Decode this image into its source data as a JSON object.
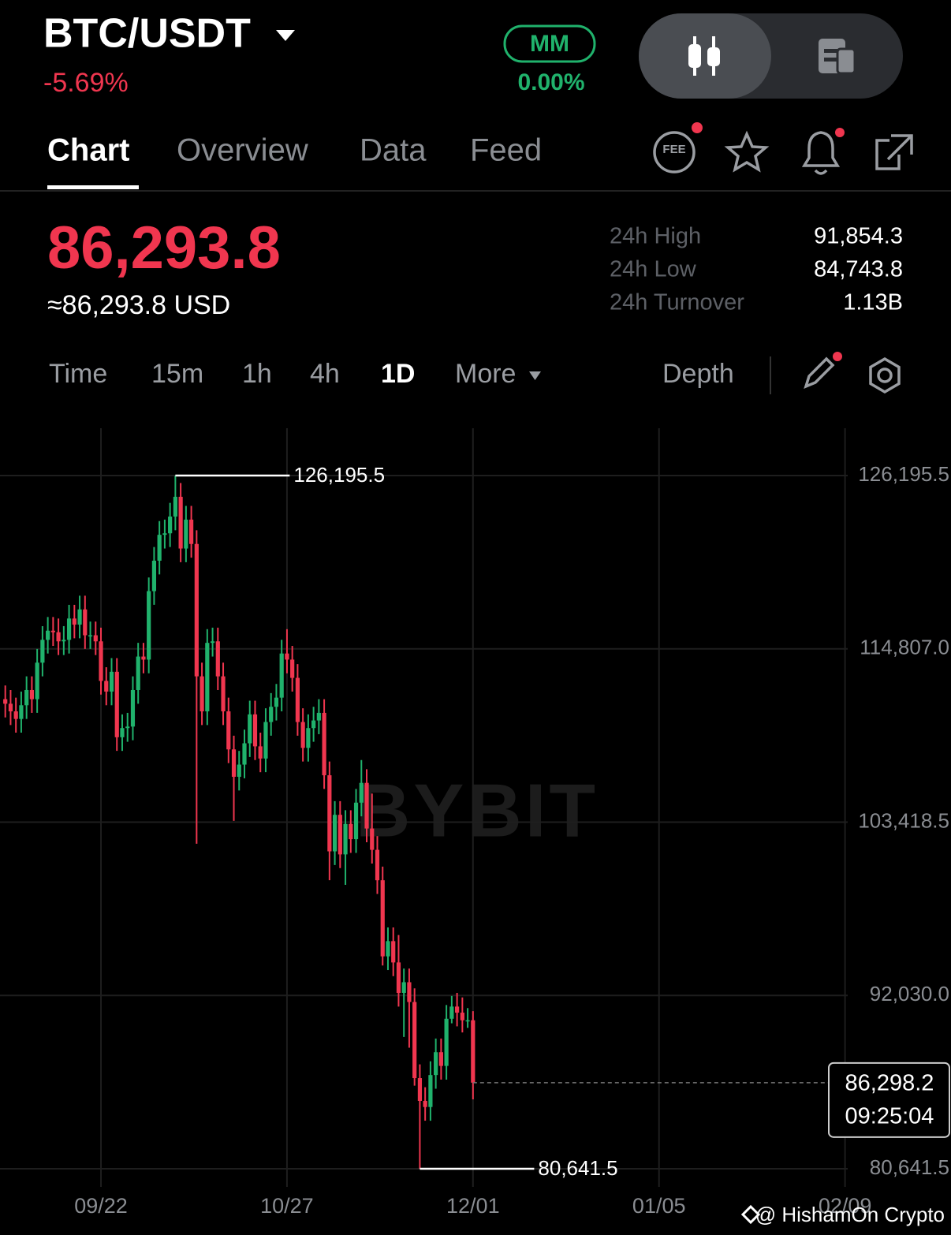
{
  "header": {
    "pair": "BTC/USDT",
    "change": "-5.69%",
    "badge": "MM",
    "badge_change": "0.00%"
  },
  "tabs": [
    "Chart",
    "Overview",
    "Data",
    "Feed"
  ],
  "ticker": {
    "price": "86,293.8",
    "usd": "≈86,293.8 USD",
    "stats": [
      {
        "label": "24h High",
        "value": "91,854.3"
      },
      {
        "label": "24h Low",
        "value": "84,743.8"
      },
      {
        "label": "24h Turnover",
        "value": "1.13B"
      }
    ]
  },
  "timeframes": [
    "Time",
    "15m",
    "1h",
    "4h",
    "1D",
    "More"
  ],
  "depth": "Depth",
  "chart_data": {
    "type": "candlestick",
    "watermark": "BYBIT",
    "x": [
      "09/04",
      "09/05",
      "09/06",
      "09/07",
      "09/08",
      "09/09",
      "09/10",
      "09/11",
      "09/12",
      "09/13",
      "09/14",
      "09/15",
      "09/16",
      "09/17",
      "09/18",
      "09/19",
      "09/20",
      "09/21",
      "09/22",
      "09/23",
      "09/24",
      "09/25",
      "09/26",
      "09/27",
      "09/28",
      "09/29",
      "09/30",
      "10/01",
      "10/02",
      "10/03",
      "10/04",
      "10/05",
      "10/06",
      "10/07",
      "10/08",
      "10/09",
      "10/10",
      "10/11",
      "10/12",
      "10/13",
      "10/14",
      "10/15",
      "10/16",
      "10/17",
      "10/18",
      "10/19",
      "10/20",
      "10/21",
      "10/22",
      "10/23",
      "10/24",
      "10/25",
      "10/26",
      "10/27",
      "10/28",
      "10/29",
      "10/30",
      "10/31",
      "11/01",
      "11/02",
      "11/03",
      "11/04",
      "11/05",
      "11/06",
      "11/07",
      "11/08",
      "11/09",
      "11/10",
      "11/11",
      "11/12",
      "11/13",
      "11/14",
      "11/15",
      "11/16",
      "11/17",
      "11/18",
      "11/19",
      "11/20",
      "11/21",
      "11/22",
      "11/23",
      "11/24",
      "11/25",
      "11/26",
      "11/27",
      "11/28",
      "11/29",
      "11/30",
      "12/01"
    ],
    "open": [
      111500,
      111200,
      110700,
      110200,
      111100,
      112100,
      111500,
      113900,
      115400,
      116000,
      115900,
      115300,
      115400,
      116800,
      116400,
      117400,
      115700,
      115700,
      115300,
      112700,
      112000,
      113300,
      109000,
      109600,
      109700,
      112100,
      114300,
      114100,
      118600,
      120600,
      122300,
      122400,
      123500,
      124800,
      121400,
      123300,
      121700,
      113000,
      110700,
      115200,
      115300,
      113000,
      110700,
      108200,
      106400,
      107200,
      108600,
      110500,
      108400,
      107600,
      110000,
      111000,
      111600,
      114500,
      114100,
      112900,
      110000,
      108300,
      109600,
      110100,
      110600,
      106500,
      101500,
      103900,
      101300,
      103300,
      102300,
      104700,
      106000,
      103000,
      101600,
      99600,
      94600,
      95600,
      94200,
      92200,
      92900,
      91600,
      86600,
      85100,
      84700,
      86800,
      88300,
      87400,
      90500,
      91300,
      90900,
      90400,
      90400
    ],
    "high": [
      112400,
      112100,
      111600,
      112000,
      113000,
      113000,
      114800,
      116300,
      116900,
      116900,
      116800,
      116300,
      117700,
      117700,
      118300,
      118300,
      116600,
      116600,
      116200,
      113600,
      114200,
      114200,
      110500,
      110600,
      113000,
      115200,
      115200,
      119500,
      121500,
      123200,
      123300,
      124400,
      126195.5,
      125700,
      124200,
      124200,
      122600,
      113900,
      116100,
      116200,
      116200,
      113900,
      111600,
      109100,
      108100,
      109500,
      111400,
      111400,
      109300,
      110900,
      111900,
      112500,
      115400,
      116100,
      115000,
      113800,
      110900,
      110500,
      111000,
      111500,
      111500,
      107400,
      104800,
      104800,
      104200,
      104200,
      105600,
      107500,
      106900,
      105300,
      102500,
      100500,
      96500,
      96500,
      96000,
      93800,
      93800,
      92500,
      87500,
      86000,
      87700,
      89200,
      89200,
      91400,
      92000,
      92200,
      91900,
      91200,
      91000
    ],
    "low": [
      110300,
      109800,
      109300,
      109300,
      110200,
      110600,
      110600,
      113000,
      114500,
      115000,
      114400,
      114400,
      114500,
      115500,
      115500,
      114800,
      114800,
      114400,
      111800,
      111100,
      111100,
      108100,
      108100,
      108700,
      108800,
      111200,
      113200,
      113200,
      117700,
      119700,
      121400,
      121500,
      122600,
      120500,
      120500,
      120800,
      102000,
      109800,
      109800,
      114300,
      112100,
      109800,
      107300,
      103500,
      105500,
      106300,
      107700,
      107500,
      106700,
      106700,
      109100,
      110100,
      110700,
      113200,
      112000,
      109100,
      107400,
      107400,
      108700,
      109200,
      105600,
      99600,
      100600,
      100400,
      99300,
      101400,
      101400,
      103800,
      102100,
      100700,
      98700,
      94000,
      93700,
      93300,
      91300,
      89300,
      88600,
      86100,
      80641.5,
      83800,
      83800,
      85900,
      86500,
      86500,
      90200,
      90000,
      89600,
      89900,
      85200
    ],
    "close": [
      111200,
      110700,
      110200,
      111100,
      112100,
      111500,
      113900,
      115400,
      116000,
      115900,
      115300,
      115400,
      116800,
      116400,
      117400,
      115700,
      115700,
      115300,
      112700,
      112000,
      113300,
      109000,
      109600,
      109700,
      112100,
      114300,
      114100,
      118600,
      120600,
      122300,
      122400,
      123500,
      124800,
      121400,
      123300,
      121700,
      113000,
      110700,
      115200,
      115300,
      113000,
      110700,
      108200,
      106400,
      107200,
      108600,
      110500,
      108400,
      107600,
      110000,
      111000,
      111600,
      114500,
      114100,
      112900,
      110000,
      108300,
      109600,
      110100,
      110600,
      106500,
      101500,
      103900,
      101300,
      103300,
      102300,
      104700,
      106000,
      103000,
      101600,
      99600,
      94600,
      95600,
      94200,
      92200,
      92900,
      91600,
      86600,
      85100,
      84700,
      86800,
      88300,
      87400,
      90500,
      91300,
      90900,
      90400,
      90400,
      86300
    ],
    "up_color": "#20b26c",
    "down_color": "#f0364f",
    "ylim": [
      79450,
      129305
    ],
    "yticks": [
      {
        "value": 80641.5,
        "label": "80,641.5"
      },
      {
        "value": 92030,
        "label": "92,030.0"
      },
      {
        "value": 103418.5,
        "label": "103,418.5"
      },
      {
        "value": 114807,
        "label": "114,807.0"
      },
      {
        "value": 126195.5,
        "label": "126,195.5"
      }
    ],
    "xticks": [
      "09/22",
      "10/27",
      "12/01",
      "01/05",
      "02/09"
    ],
    "grid": true,
    "high_marker": {
      "value": 126195.5,
      "label": "126,195.5"
    },
    "low_marker": {
      "value": 80641.5,
      "label": "80,641.5"
    },
    "last_price": {
      "value": 86298.2,
      "label": "86,298.2",
      "countdown": "09:25:04"
    }
  },
  "credit": "@ HishamOn Crypto"
}
